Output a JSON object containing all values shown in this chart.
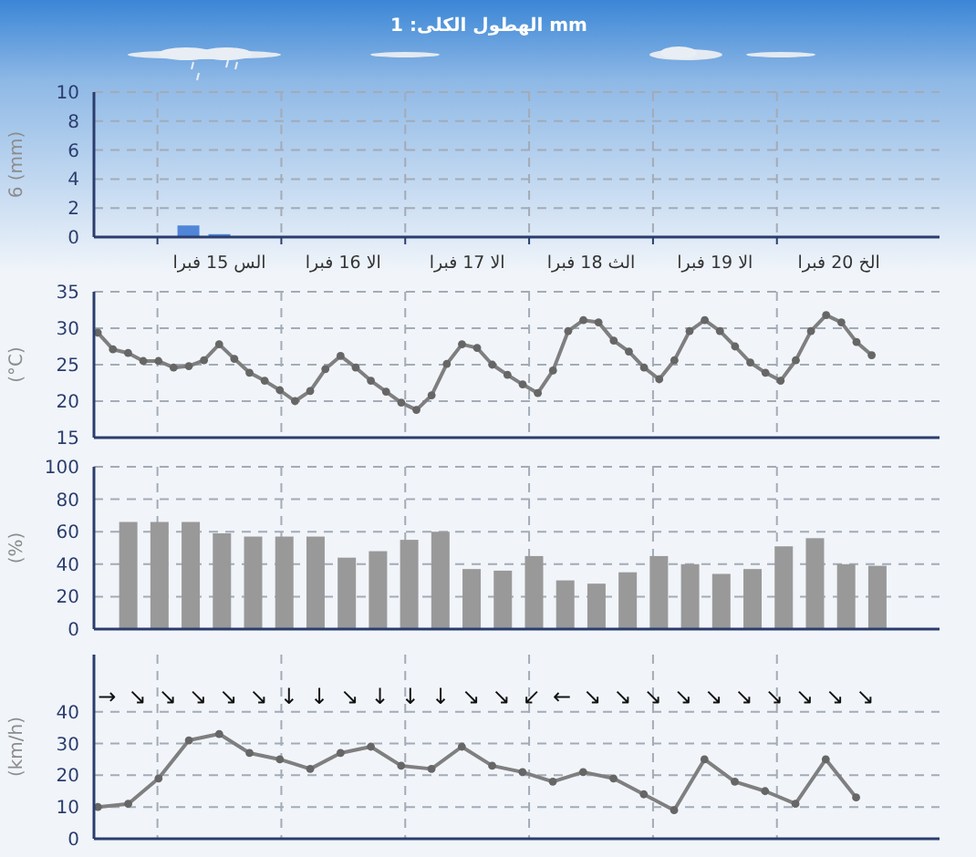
{
  "chart_data": [
    {
      "type": "bar",
      "title": "الهطول الكلى: 1 mm",
      "ylabel": "6 (mm)",
      "categories": [
        null,
        null,
        null,
        null,
        "الس 15 فبرا",
        null,
        null,
        null,
        "الا 16 فبرا",
        null,
        null,
        null,
        "الا 17 فبرا",
        null,
        null,
        null,
        "الث 18 فبرا",
        null,
        null,
        null,
        "الا 19 فبرا",
        null,
        null,
        null,
        "الخ 20 فبرا",
        null,
        null,
        null
      ],
      "values": [
        null,
        null,
        null,
        0.8,
        0.2,
        null,
        null,
        null,
        null,
        null,
        null,
        null,
        null,
        null,
        null,
        null,
        null,
        null,
        null,
        null,
        null,
        null,
        null,
        null,
        null,
        null,
        null,
        null
      ],
      "color": "#4f86d8",
      "ylim": [
        0,
        10
      ],
      "yticks": [
        0,
        2,
        4,
        6,
        8,
        10
      ],
      "grid": true
    },
    {
      "type": "line",
      "ylabel": "(°C)",
      "categories": [
        null,
        null,
        null,
        null,
        null,
        null,
        null,
        null,
        null,
        null,
        null,
        null,
        null,
        null,
        null,
        null,
        null,
        null,
        null,
        null,
        null,
        null,
        null,
        null,
        null,
        null,
        null,
        null,
        null,
        null,
        null,
        null,
        null,
        null,
        null,
        null,
        null,
        null,
        null,
        null,
        null,
        null,
        null,
        null,
        null,
        null,
        null,
        null,
        null,
        null,
        null,
        null
      ],
      "values": [
        29.4,
        27.1,
        26.6,
        25.5,
        25.5,
        24.6,
        24.8,
        25.6,
        27.8,
        25.8,
        23.9,
        22.8,
        21.5,
        20.0,
        21.4,
        24.4,
        26.2,
        24.6,
        22.8,
        21.3,
        19.8,
        18.8,
        20.8,
        25.1,
        27.8,
        27.3,
        25.0,
        23.6,
        22.3,
        21.1,
        24.2,
        29.6,
        31.1,
        30.8,
        28.3,
        26.8,
        24.6,
        23.0,
        25.6,
        29.6,
        31.1,
        29.6,
        27.5,
        25.3,
        23.9,
        22.8,
        25.6,
        29.6,
        31.8,
        30.8,
        28.1,
        26.3
      ],
      "color": "#7f7f7f",
      "marker": "circle",
      "ylim": [
        15,
        35
      ],
      "yticks": [
        15,
        20,
        25,
        30,
        35
      ],
      "grid": true
    },
    {
      "type": "bar",
      "ylabel": "(%)",
      "categories": [
        null,
        null,
        null,
        null,
        null,
        null,
        null,
        null,
        null,
        null,
        null,
        null,
        null,
        null,
        null,
        null,
        null,
        null,
        null,
        null,
        null,
        null,
        null,
        null,
        null
      ],
      "values": [
        66,
        66,
        66,
        59,
        57,
        57,
        57,
        44,
        48,
        55,
        60,
        37,
        36,
        45,
        30,
        28,
        35,
        45,
        40,
        34,
        37,
        51,
        56,
        40,
        39
      ],
      "color": "#999999",
      "ylim": [
        0,
        100
      ],
      "yticks": [
        0,
        20,
        40,
        60,
        80,
        100
      ],
      "grid": true
    },
    {
      "type": "line",
      "ylabel": "(km/h)",
      "categories": [
        null,
        null,
        null,
        null,
        null,
        null,
        null,
        null,
        null,
        null,
        null,
        null,
        null,
        null,
        null,
        null,
        null,
        null,
        null,
        null,
        null,
        null,
        null,
        null,
        null,
        null
      ],
      "values": [
        10,
        11,
        19,
        31,
        33,
        27,
        25,
        22,
        27,
        29,
        23,
        22,
        29,
        23,
        21,
        18,
        21,
        19,
        14,
        9,
        25,
        18,
        15,
        11,
        25,
        13
      ],
      "color": "#7f7f7f",
      "marker": "circle",
      "ylim": [
        0,
        58
      ],
      "yticks": [
        0,
        10,
        20,
        30,
        40
      ],
      "grid": true,
      "annotations": [
        "→",
        "↘",
        "↘",
        "↘",
        "↘",
        "↘",
        "↓",
        "↓",
        "↘",
        "↓",
        "↓",
        "↓",
        "↘",
        "↘",
        "↙",
        "←",
        "↘",
        "↘",
        "↘",
        "↘",
        "↘",
        "↘",
        "↘",
        "↘",
        "↘",
        "↘"
      ]
    }
  ]
}
